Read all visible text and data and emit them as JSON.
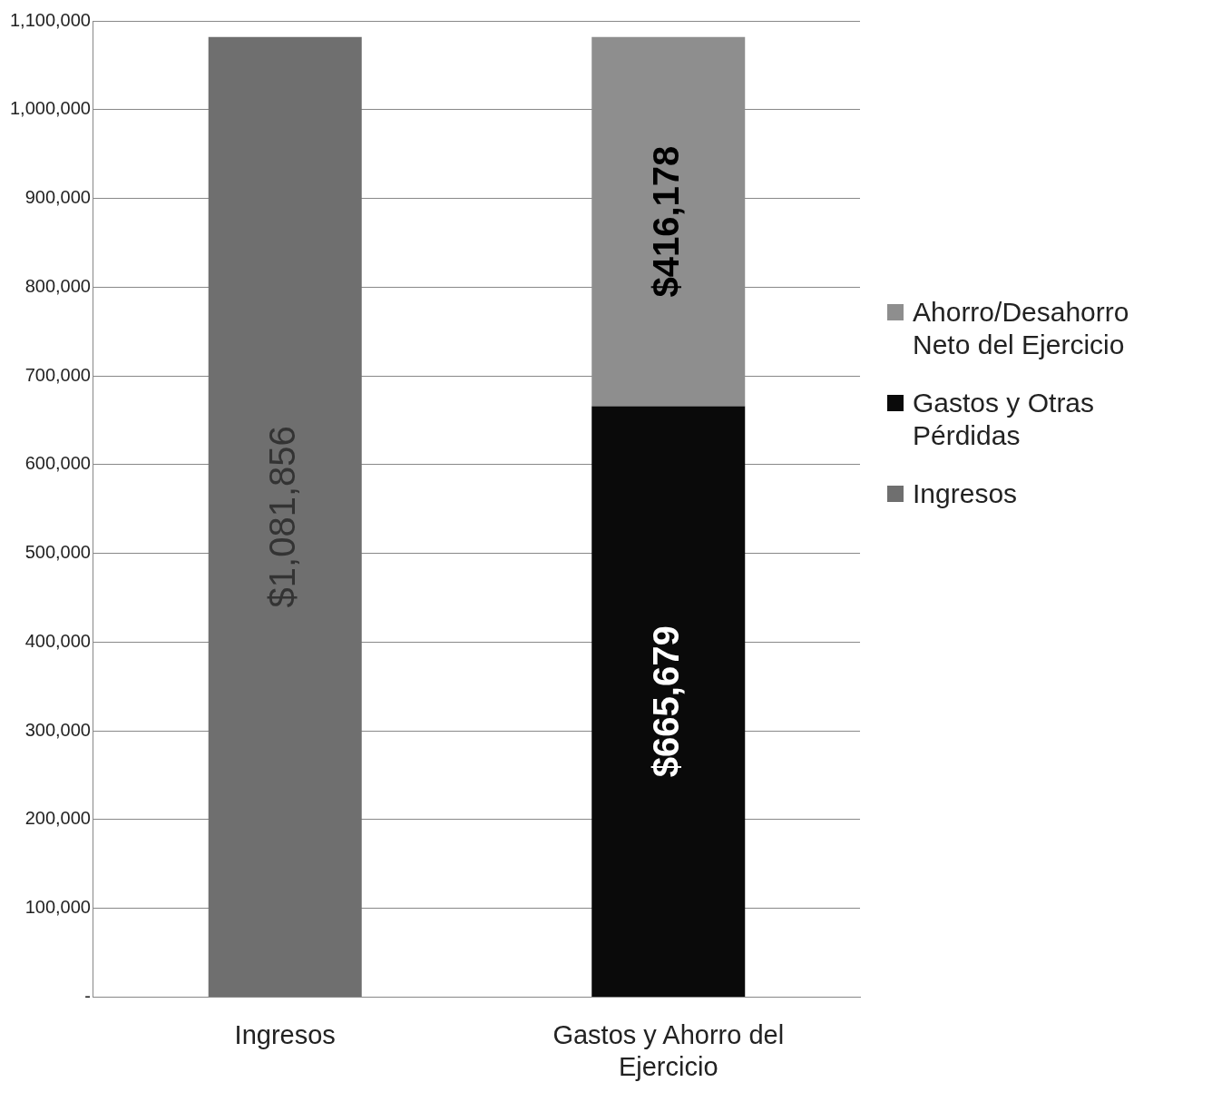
{
  "chart_data": {
    "type": "bar",
    "stacked": true,
    "categories": [
      "Ingresos",
      "Gastos y Ahorro del Ejercicio"
    ],
    "series": [
      {
        "name": "Ingresos",
        "color": "#6f6f6f",
        "values": [
          1081856,
          null
        ],
        "value_labels": [
          "$1,081,856",
          null
        ]
      },
      {
        "name": "Gastos y Otras Pérdidas",
        "color": "#0a0a0a",
        "values": [
          null,
          665679
        ],
        "value_labels": [
          null,
          "$665,679"
        ]
      },
      {
        "name": "Ahorro/Desahorro Neto del Ejercicio",
        "color": "#8e8e8e",
        "values": [
          null,
          416178
        ],
        "value_labels": [
          null,
          "$416,178"
        ]
      }
    ],
    "ylim": [
      0,
      1100000
    ],
    "yticks": [
      {
        "value": 0,
        "label": "-"
      },
      {
        "value": 100000,
        "label": "100,000"
      },
      {
        "value": 200000,
        "label": "200,000"
      },
      {
        "value": 300000,
        "label": "300,000"
      },
      {
        "value": 400000,
        "label": "400,000"
      },
      {
        "value": 500000,
        "label": "500,000"
      },
      {
        "value": 600000,
        "label": "600,000"
      },
      {
        "value": 700000,
        "label": "700,000"
      },
      {
        "value": 800000,
        "label": "800,000"
      },
      {
        "value": 900000,
        "label": "900,000"
      },
      {
        "value": 1000000,
        "label": "1,000,000"
      },
      {
        "value": 1100000,
        "label": "1,100,000"
      }
    ],
    "grid": "y",
    "legend": "right"
  }
}
